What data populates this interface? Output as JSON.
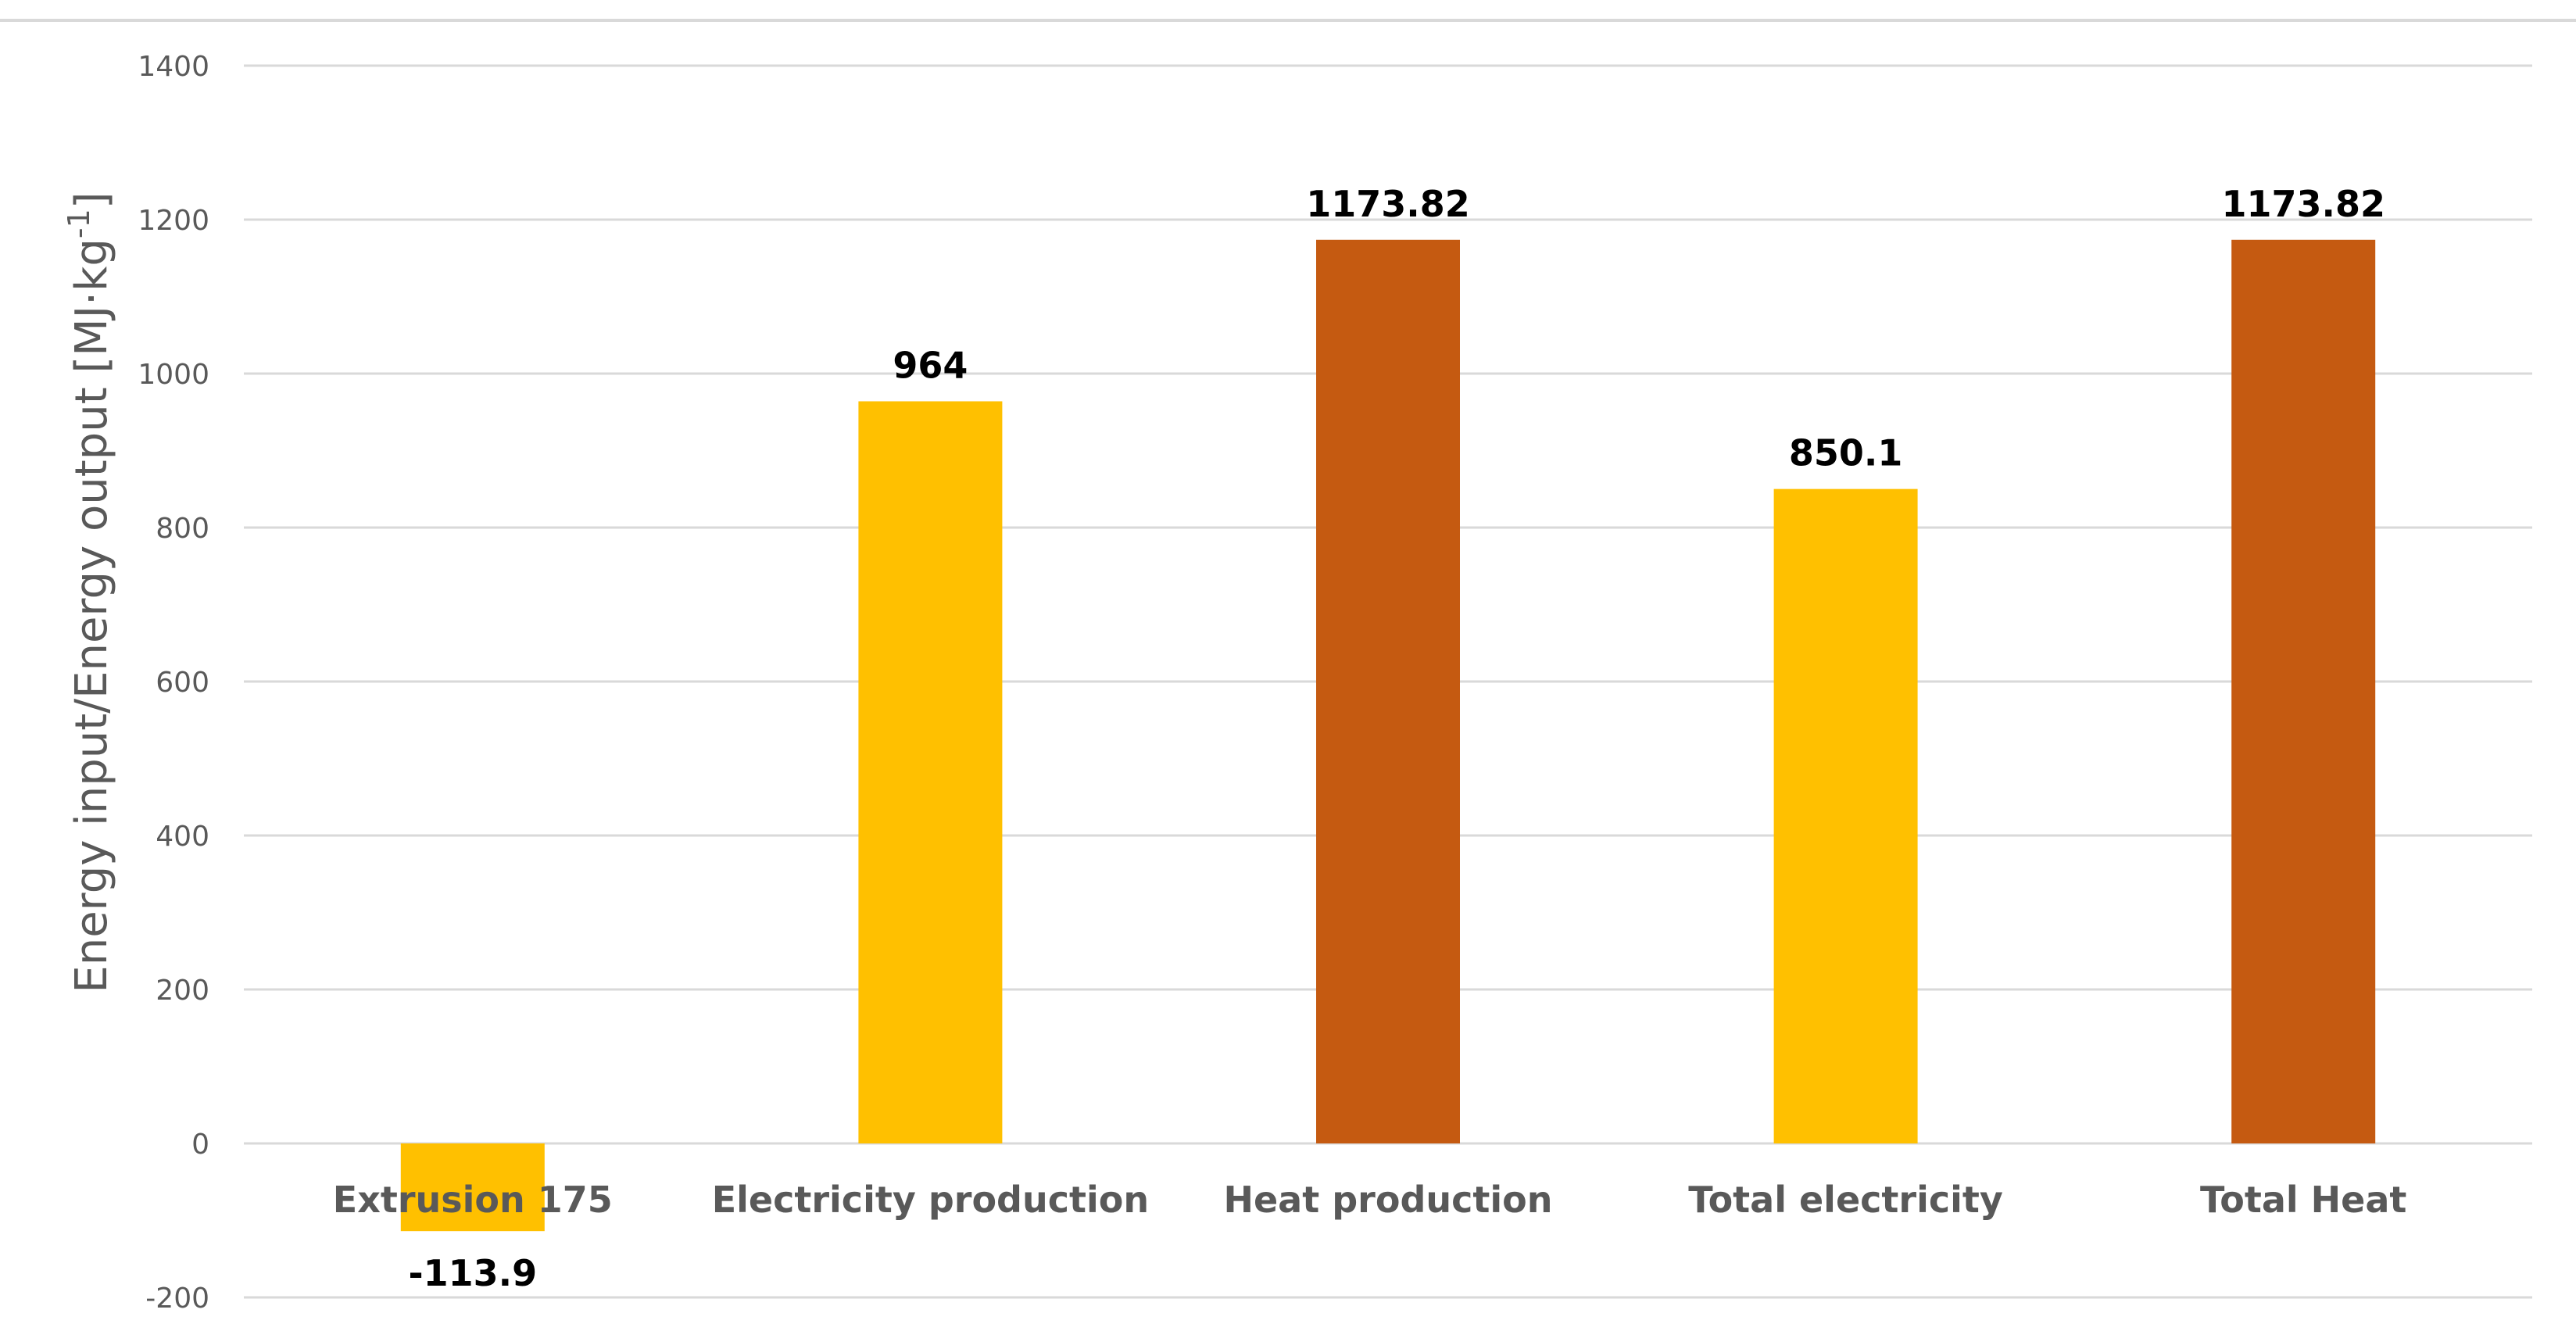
{
  "chart_data": {
    "type": "bar",
    "title": "",
    "xlabel": "",
    "ylabel": "Energy input/Energy output  [MJ·kg",
    "ylabel_superscript": "-1",
    "ylabel_suffix": "]",
    "ylim": [
      -200,
      1400
    ],
    "yticks": [
      -200,
      0,
      200,
      400,
      600,
      800,
      1000,
      1200,
      1400
    ],
    "grid": true,
    "categories": [
      "Extrusion 175",
      "Electricity production",
      "Heat production",
      "Total electricity",
      "Total Heat"
    ],
    "values": [
      -113.9,
      964,
      1173.82,
      850.1,
      1173.82
    ],
    "data_labels": [
      "-113.9",
      "964",
      "1173.82",
      "850.1",
      "1173.82"
    ],
    "bar_colors": [
      "#FFC000",
      "#FFC000",
      "#C55A11",
      "#FFC000",
      "#C55A11"
    ]
  }
}
